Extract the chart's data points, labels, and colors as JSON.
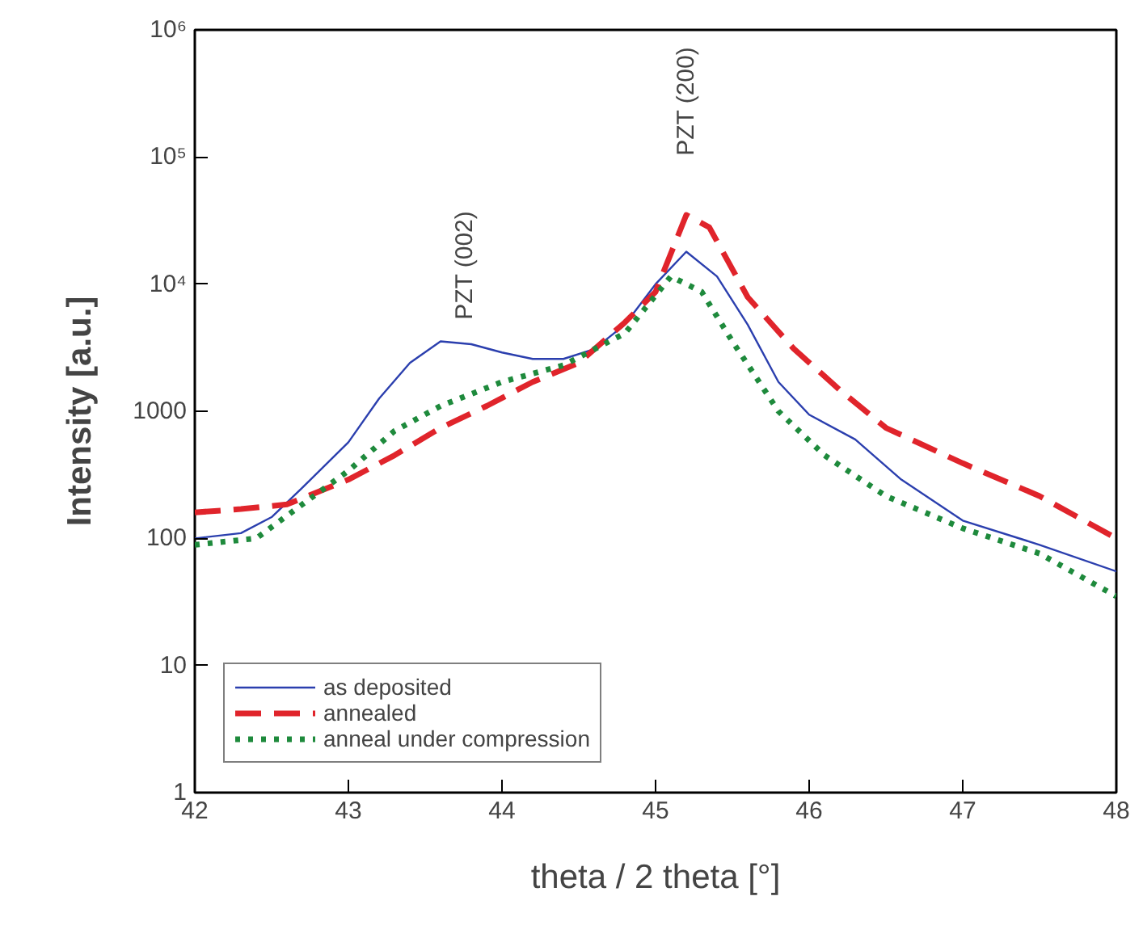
{
  "chart_data": {
    "type": "line",
    "xlabel": "theta / 2 theta [°]",
    "ylabel": "Intensity [a.u.]",
    "log": "y",
    "xlim": [
      42,
      48
    ],
    "xticks": [
      42,
      43,
      44,
      45,
      46,
      47,
      48
    ],
    "ylim": [
      1,
      1000000
    ],
    "yticks": [
      1,
      10,
      100,
      1000,
      {
        "value": 10000,
        "label": "10⁴"
      },
      {
        "value": 100000,
        "label": "10⁵"
      },
      {
        "value": 1000000,
        "label": "10⁶"
      }
    ],
    "grid": false,
    "legend": "bottom left",
    "series": [
      {
        "name": "as deposited",
        "color": "#2b3fae",
        "line_style": "solid",
        "x": [
          42.0,
          42.3,
          42.5,
          42.7,
          43.0,
          43.2,
          43.4,
          43.6,
          43.8,
          44.0,
          44.2,
          44.4,
          44.6,
          44.8,
          45.0,
          45.2,
          45.4,
          45.6,
          45.8,
          46.0,
          46.3,
          46.6,
          47.0,
          47.5,
          48.0
        ],
        "values": [
          100,
          110,
          147,
          250,
          570,
          1260,
          2400,
          3550,
          3370,
          2900,
          2580,
          2580,
          3080,
          4800,
          10000,
          18000,
          11500,
          4800,
          1700,
          940,
          600,
          290,
          138,
          89,
          55
        ]
      },
      {
        "name": "annealed",
        "color": "#e0242b",
        "line_style": "dashed",
        "x": [
          42.0,
          42.3,
          42.6,
          43.0,
          43.3,
          43.6,
          43.9,
          44.2,
          44.5,
          44.8,
          45.0,
          45.2,
          45.35,
          45.6,
          45.9,
          46.2,
          46.5,
          47.0,
          47.5,
          48.0
        ],
        "values": [
          160,
          170,
          185,
          290,
          450,
          740,
          1100,
          1700,
          2400,
          5000,
          8700,
          35000,
          28000,
          7900,
          3100,
          1470,
          740,
          390,
          215,
          100
        ]
      },
      {
        "name": "anneal under compression",
        "color": "#1e8a3c",
        "line_style": "dotted",
        "x": [
          42.0,
          42.4,
          42.7,
          43.0,
          43.3,
          43.6,
          44.0,
          44.4,
          44.8,
          45.1,
          45.3,
          45.5,
          45.8,
          46.1,
          46.5,
          47.0,
          47.5,
          48.0
        ],
        "values": [
          89,
          100,
          185,
          340,
          700,
          1100,
          1700,
          2300,
          4100,
          11500,
          8700,
          3550,
          1000,
          450,
          215,
          120,
          76,
          35
        ]
      }
    ],
    "annotations": [
      "PZT (002)",
      "PZT (200)"
    ]
  }
}
